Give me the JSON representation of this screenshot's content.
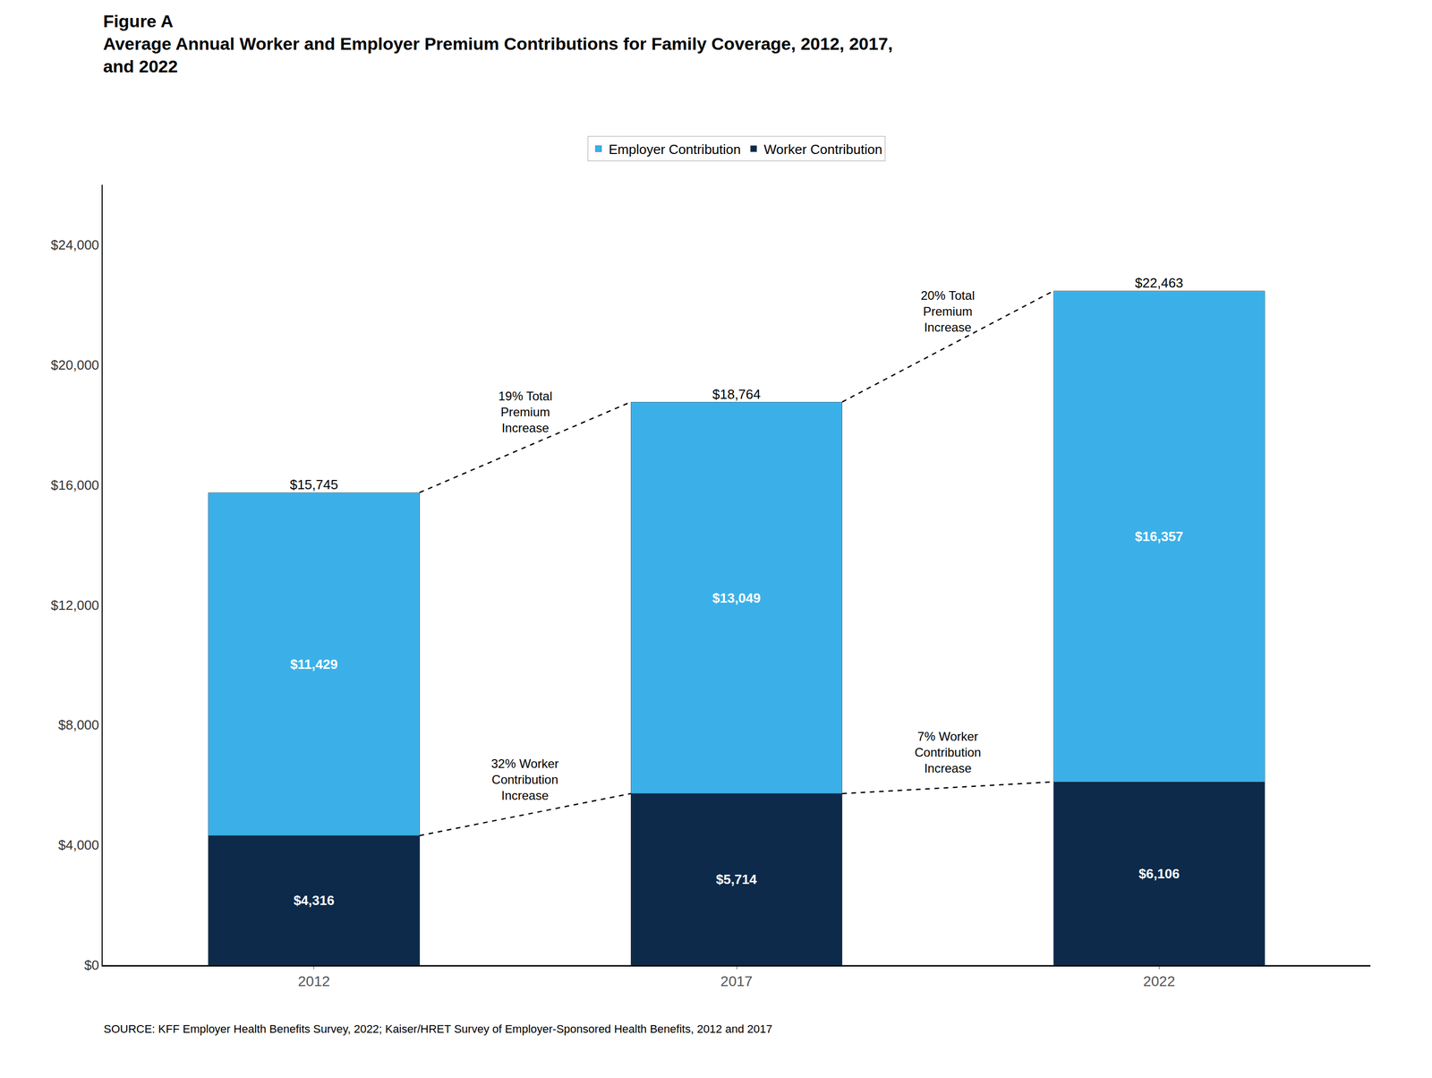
{
  "chart_data": {
    "type": "bar",
    "title": "Figure A",
    "subtitle": "Average Annual Worker and Employer Premium Contributions for Family Coverage, 2012, 2017,\nand 2022",
    "categories": [
      "2012",
      "2017",
      "2022"
    ],
    "series": [
      {
        "name": "Worker Contribution",
        "color": "#0d2a4a",
        "values": [
          4316,
          5714,
          6106
        ],
        "value_labels": [
          "$4,316",
          "$5,714",
          "$6,106"
        ],
        "annotations": [
          "32% Worker\nContribution\nIncrease",
          "7% Worker\nContribution\nIncrease"
        ]
      },
      {
        "name": "Employer Contribution",
        "color": "#3bb0e8",
        "values": [
          11429,
          13049,
          16357
        ],
        "value_labels": [
          "$11,429",
          "$13,049",
          "$16,357"
        ]
      }
    ],
    "total_values": [
      15745,
      18764,
      22463
    ],
    "total_labels": [
      "$15,745",
      "$18,764",
      "$22,463"
    ],
    "total_annotations": [
      "19% Total\nPremium\nIncrease",
      "20% Total\nPremium\nIncrease"
    ],
    "stacked": true,
    "data_labels": true,
    "line_style": "dashed",
    "ylim": [
      0,
      26000
    ],
    "yticks": [
      {
        "value": 0,
        "label": "$0"
      },
      {
        "value": 4000,
        "label": "$4,000"
      },
      {
        "value": 8000,
        "label": "$8,000"
      },
      {
        "value": 12000,
        "label": "$12,000"
      },
      {
        "value": 16000,
        "label": "$16,000"
      },
      {
        "value": 20000,
        "label": "$20,000"
      },
      {
        "value": 24000,
        "label": "$24,000"
      }
    ],
    "grid": false,
    "legend": "top",
    "source": "SOURCE: KFF Employer Health Benefits Survey, 2022; Kaiser/HRET Survey of Employer-Sponsored Health Benefits, 2012 and 2017"
  }
}
